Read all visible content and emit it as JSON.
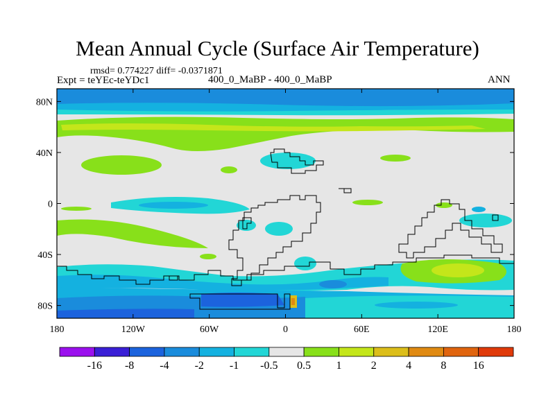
{
  "title": "Mean Annual Cycle (Surface Air Temperature)",
  "stats_line": "rmsd= 0.774227 diff= -0.0371871",
  "experiment_line": "Expt = teYEc-teYDc1",
  "case_line": "400_0_MaBP - 400_0_MaBP",
  "season": "ANN",
  "map_data": {
    "type": "contour-map",
    "lat_ticks": [
      80,
      40,
      0,
      -40,
      -80
    ],
    "lat_labels": [
      "80N",
      "40N",
      "0",
      "40S",
      "80S"
    ],
    "lon_ticks": [
      -180,
      -120,
      -60,
      0,
      60,
      120,
      180
    ],
    "lon_labels": [
      "180",
      "120W",
      "60W",
      "0",
      "60E",
      "120E",
      "180"
    ],
    "lat_range": [
      -90,
      90
    ],
    "lon_range": [
      -180,
      180
    ]
  },
  "colorbar": {
    "labels": [
      "-16",
      "-8",
      "-4",
      "-2",
      "-1",
      "-0.5",
      "0.5",
      "1",
      "2",
      "4",
      "8",
      "16"
    ],
    "colors": [
      "#9b10ee",
      "#3a1fd6",
      "#1c63dd",
      "#1a8cdc",
      "#14b1e0",
      "#22d6d6",
      "#e6e6e6",
      "#88e01a",
      "#c4e61a",
      "#dcbe1a",
      "#e08a12",
      "#e0640e",
      "#e03a0a"
    ]
  },
  "palette": {
    "background": "#e6e6e6",
    "light_cool": "#22d6d6",
    "cool": "#14b1e0",
    "blue": "#1a8cdc",
    "deep_blue": "#1c63dd",
    "warm": "#88e01a",
    "warmer": "#c4e61a",
    "hot": "#dcbe1a",
    "hottest": "#e08a12"
  }
}
